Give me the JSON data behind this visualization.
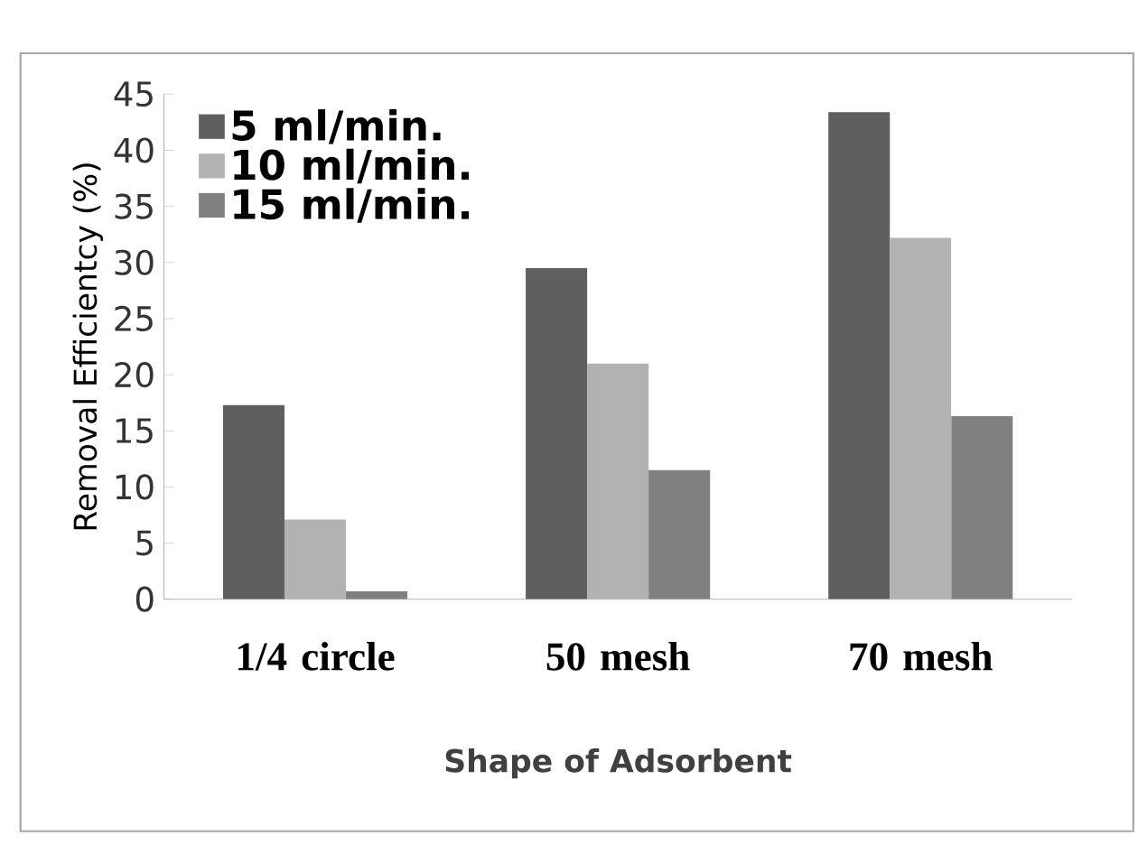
{
  "chart_data": {
    "type": "bar",
    "xlabel": "Shape of Adsorbent",
    "ylabel": "Removal Efficientcy (%)",
    "categories": [
      "1/4 circle",
      "50 mesh",
      "70 mesh"
    ],
    "series": [
      {
        "name": "5 ml/min.",
        "color": "#5f5f5f",
        "values": [
          17.3,
          29.5,
          43.4
        ]
      },
      {
        "name": "10 ml/min.",
        "color": "#b2b2b2",
        "values": [
          7.1,
          21.0,
          32.2
        ]
      },
      {
        "name": "15 ml/min.",
        "color": "#808080",
        "values": [
          0.7,
          11.5,
          16.3
        ]
      }
    ],
    "ylim": [
      0,
      45
    ],
    "yticks": [
      0,
      5,
      10,
      15,
      20,
      25,
      30,
      35,
      40,
      45
    ],
    "legend": "top left",
    "grid": false
  }
}
